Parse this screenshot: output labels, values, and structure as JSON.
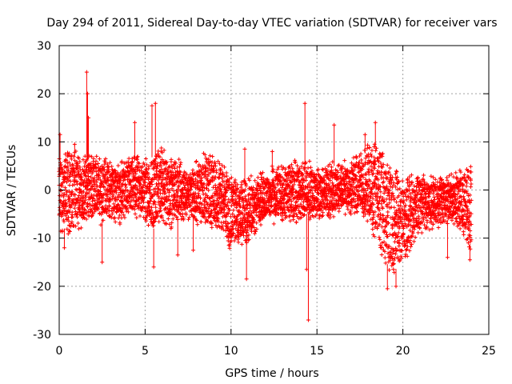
{
  "chart_data": {
    "type": "scatter",
    "title": "Day 294 of 2011, Sidereal Day-to-day VTEC variation (SDTVAR) for receiver vars",
    "xlabel": "GPS time / hours",
    "ylabel": "SDTVAR / TECUs",
    "xlim": [
      0,
      25
    ],
    "ylim": [
      -30,
      30
    ],
    "xticks": [
      0,
      5,
      10,
      15,
      20,
      25
    ],
    "yticks": [
      -30,
      -20,
      -10,
      0,
      10,
      20,
      30
    ],
    "grid": true,
    "marker": "+",
    "color": "#ff0000",
    "envelope": {
      "hours": [
        0,
        0.5,
        1,
        1.5,
        2,
        2.5,
        3,
        3.5,
        4,
        4.5,
        5,
        5.5,
        6,
        6.5,
        7,
        7.5,
        8,
        8.5,
        9,
        9.5,
        10,
        10.5,
        11,
        11.5,
        12,
        12.5,
        13,
        13.5,
        14,
        14.5,
        15,
        15.5,
        16,
        16.5,
        17,
        17.5,
        18,
        18.5,
        19,
        19.5,
        20,
        20.5,
        21,
        21.5,
        22,
        22.5,
        23,
        23.5,
        24
      ],
      "upper": [
        6,
        7,
        7,
        6,
        7,
        6,
        5,
        5,
        6,
        6,
        6,
        7,
        8,
        6,
        5,
        3,
        5,
        7,
        6,
        5,
        2,
        1,
        2,
        2,
        3,
        4,
        4,
        5,
        5,
        5,
        4,
        4,
        5,
        5,
        6,
        7,
        8,
        9,
        6,
        4,
        1,
        2,
        3,
        2,
        2,
        2,
        2,
        4,
        5
      ],
      "lower": [
        -8,
        -8,
        -7,
        -6,
        -5,
        -6,
        -5,
        -6,
        -5,
        -5,
        -6,
        -8,
        -6,
        -7,
        -5,
        -5,
        -6,
        -6,
        -7,
        -8,
        -12,
        -11,
        -10,
        -7,
        -6,
        -6,
        -6,
        -6,
        -5,
        -5,
        -5,
        -5,
        -5,
        -4,
        -4,
        -5,
        -6,
        -10,
        -15,
        -17,
        -14,
        -11,
        -8,
        -7,
        -7,
        -6,
        -7,
        -8,
        -12
      ]
    },
    "spikes": [
      {
        "x": 0.05,
        "y": 11.5
      },
      {
        "x": 0.3,
        "y": -12
      },
      {
        "x": 0.9,
        "y": 9.5
      },
      {
        "x": 1.6,
        "y": 24.5
      },
      {
        "x": 1.65,
        "y": 20
      },
      {
        "x": 1.7,
        "y": 15
      },
      {
        "x": 2.5,
        "y": -15
      },
      {
        "x": 4.4,
        "y": 14
      },
      {
        "x": 5.4,
        "y": 17.5
      },
      {
        "x": 5.6,
        "y": 18
      },
      {
        "x": 5.5,
        "y": -16
      },
      {
        "x": 6.9,
        "y": -13.5
      },
      {
        "x": 7.8,
        "y": -12.5
      },
      {
        "x": 10.8,
        "y": 8.5
      },
      {
        "x": 10.9,
        "y": -18.5
      },
      {
        "x": 12.4,
        "y": 8
      },
      {
        "x": 14.3,
        "y": 18
      },
      {
        "x": 14.5,
        "y": -27
      },
      {
        "x": 14.4,
        "y": -16.5
      },
      {
        "x": 16.0,
        "y": 13.5
      },
      {
        "x": 17.8,
        "y": 11.5
      },
      {
        "x": 18.4,
        "y": 14
      },
      {
        "x": 19.1,
        "y": -20.5
      },
      {
        "x": 19.6,
        "y": -20
      },
      {
        "x": 22.6,
        "y": -14
      },
      {
        "x": 23.9,
        "y": -14.5
      }
    ]
  }
}
